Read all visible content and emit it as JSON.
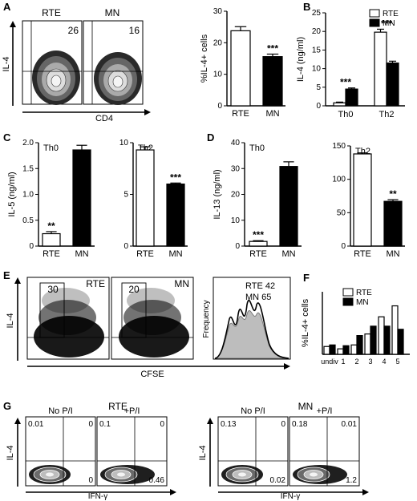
{
  "panel_letters": [
    "A",
    "B",
    "C",
    "D",
    "E",
    "F",
    "G"
  ],
  "flow": {
    "A": {
      "plots": [
        {
          "title": "RTE",
          "value": "26"
        },
        {
          "title": "MN",
          "value": "16"
        }
      ],
      "y_axis": "IL-4",
      "x_axis": "CD4"
    },
    "E": {
      "plots": [
        {
          "title": "RTE",
          "value": "30"
        },
        {
          "title": "MN",
          "value": "20"
        }
      ],
      "y_axis": "IL-4",
      "x_axis": "CFSE",
      "histogram": {
        "y_axis": "Frequency",
        "legend_rte": "RTE 42",
        "legend_mn": "MN 65"
      }
    },
    "G": {
      "group_rte": "RTE",
      "group_mn": "MN",
      "y_axis": "IL-4",
      "x_axis": "IFN-γ",
      "plots": [
        {
          "title": "No P/I",
          "tl": "0.01",
          "tr": "0",
          "br": "0"
        },
        {
          "title": "+P/I",
          "tl": "0.1",
          "tr": "0",
          "br": "0.46"
        },
        {
          "title": "No P/I",
          "tl": "0.13",
          "tr": "0",
          "br": "0.02"
        },
        {
          "title": "+P/I",
          "tl": "0.18",
          "tr": "0.01",
          "br": "1.2"
        }
      ]
    }
  },
  "chart_data": [
    {
      "id": "A-bar",
      "type": "bar",
      "categories": [
        "RTE",
        "MN"
      ],
      "values": [
        23.8,
        15.6
      ],
      "errors": [
        1.3,
        0.8
      ],
      "fills": [
        "#ffffff",
        "#000000"
      ],
      "ylabel": "%IL-4+ cells",
      "ylim": [
        0,
        30
      ],
      "yticks": [
        0,
        10,
        20,
        30
      ],
      "annotations": [
        {
          "category": "MN",
          "text": "***"
        }
      ]
    },
    {
      "id": "B",
      "type": "bar",
      "categories": [
        "Th0",
        "Th2"
      ],
      "series": [
        {
          "name": "RTE",
          "values": [
            0.8,
            19.8
          ],
          "errors": [
            0.2,
            0.8
          ],
          "fill": "#ffffff"
        },
        {
          "name": "MN",
          "values": [
            4.5,
            11.5
          ],
          "errors": [
            0.3,
            0.5
          ],
          "fill": "#000000"
        }
      ],
      "ylabel": "IL-4 (ng/ml)",
      "ylim": [
        0,
        25
      ],
      "yticks": [
        0,
        5,
        10,
        15,
        20,
        25
      ],
      "legend": "top-right",
      "annotations": [
        {
          "category": "Th0",
          "text": "***"
        },
        {
          "category": "Th2",
          "text": "***"
        }
      ]
    },
    {
      "id": "C-Th0",
      "type": "bar",
      "title": "Th0",
      "categories": [
        "RTE",
        "MN"
      ],
      "values": [
        0.24,
        1.86
      ],
      "errors": [
        0.04,
        0.09
      ],
      "fills": [
        "#ffffff",
        "#000000"
      ],
      "ylabel": "IL-5 (ng/ml)",
      "ylim": [
        0,
        2.0
      ],
      "yticks": [
        0,
        0.5,
        1.0,
        1.5,
        2.0
      ],
      "ytick_labels": [
        "0",
        "0.5",
        "1.0",
        "1.5",
        "2.0"
      ],
      "annotations": [
        {
          "category": "RTE",
          "text": "**"
        }
      ]
    },
    {
      "id": "C-Th2",
      "type": "bar",
      "title": "Th2",
      "categories": [
        "RTE",
        "MN"
      ],
      "values": [
        9.3,
        6.0
      ],
      "errors": [
        0.3,
        0.1
      ],
      "fills": [
        "#ffffff",
        "#000000"
      ],
      "ylabel": "",
      "ylim": [
        0,
        10
      ],
      "yticks": [
        0,
        5,
        10
      ],
      "annotations": [
        {
          "category": "MN",
          "text": "***"
        }
      ]
    },
    {
      "id": "D-Th0",
      "type": "bar",
      "title": "Th0",
      "categories": [
        "RTE",
        "MN"
      ],
      "values": [
        1.8,
        30.8
      ],
      "errors": [
        0.3,
        1.8
      ],
      "fills": [
        "#ffffff",
        "#000000"
      ],
      "ylabel": "IL-13 (ng/ml)",
      "ylim": [
        0,
        40
      ],
      "yticks": [
        0,
        10,
        20,
        30,
        40
      ],
      "annotations": [
        {
          "category": "RTE",
          "text": "***"
        }
      ]
    },
    {
      "id": "D-Th2",
      "type": "bar",
      "title": "Th2",
      "categories": [
        "RTE",
        "MN"
      ],
      "values": [
        138,
        67
      ],
      "errors": [
        1.5,
        2.5
      ],
      "fills": [
        "#ffffff",
        "#000000"
      ],
      "ylabel": "",
      "ylim": [
        0,
        150
      ],
      "yticks": [
        0,
        50,
        100,
        150
      ],
      "annotations": [
        {
          "category": "MN",
          "text": "**"
        }
      ]
    },
    {
      "id": "F",
      "type": "bar",
      "categories": [
        "undiv",
        "1",
        "2",
        "3",
        "4",
        "5"
      ],
      "series": [
        {
          "name": "RTE",
          "values": [
            5,
            3.5,
            6,
            13,
            24,
            31
          ],
          "fill": "#ffffff"
        },
        {
          "name": "MN",
          "values": [
            6,
            5.5,
            12,
            18,
            18,
            16
          ],
          "fill": "#000000"
        }
      ],
      "ylabel": "%IL-4+ cells",
      "ylim": [
        0,
        40
      ],
      "legend": "top-left"
    }
  ]
}
